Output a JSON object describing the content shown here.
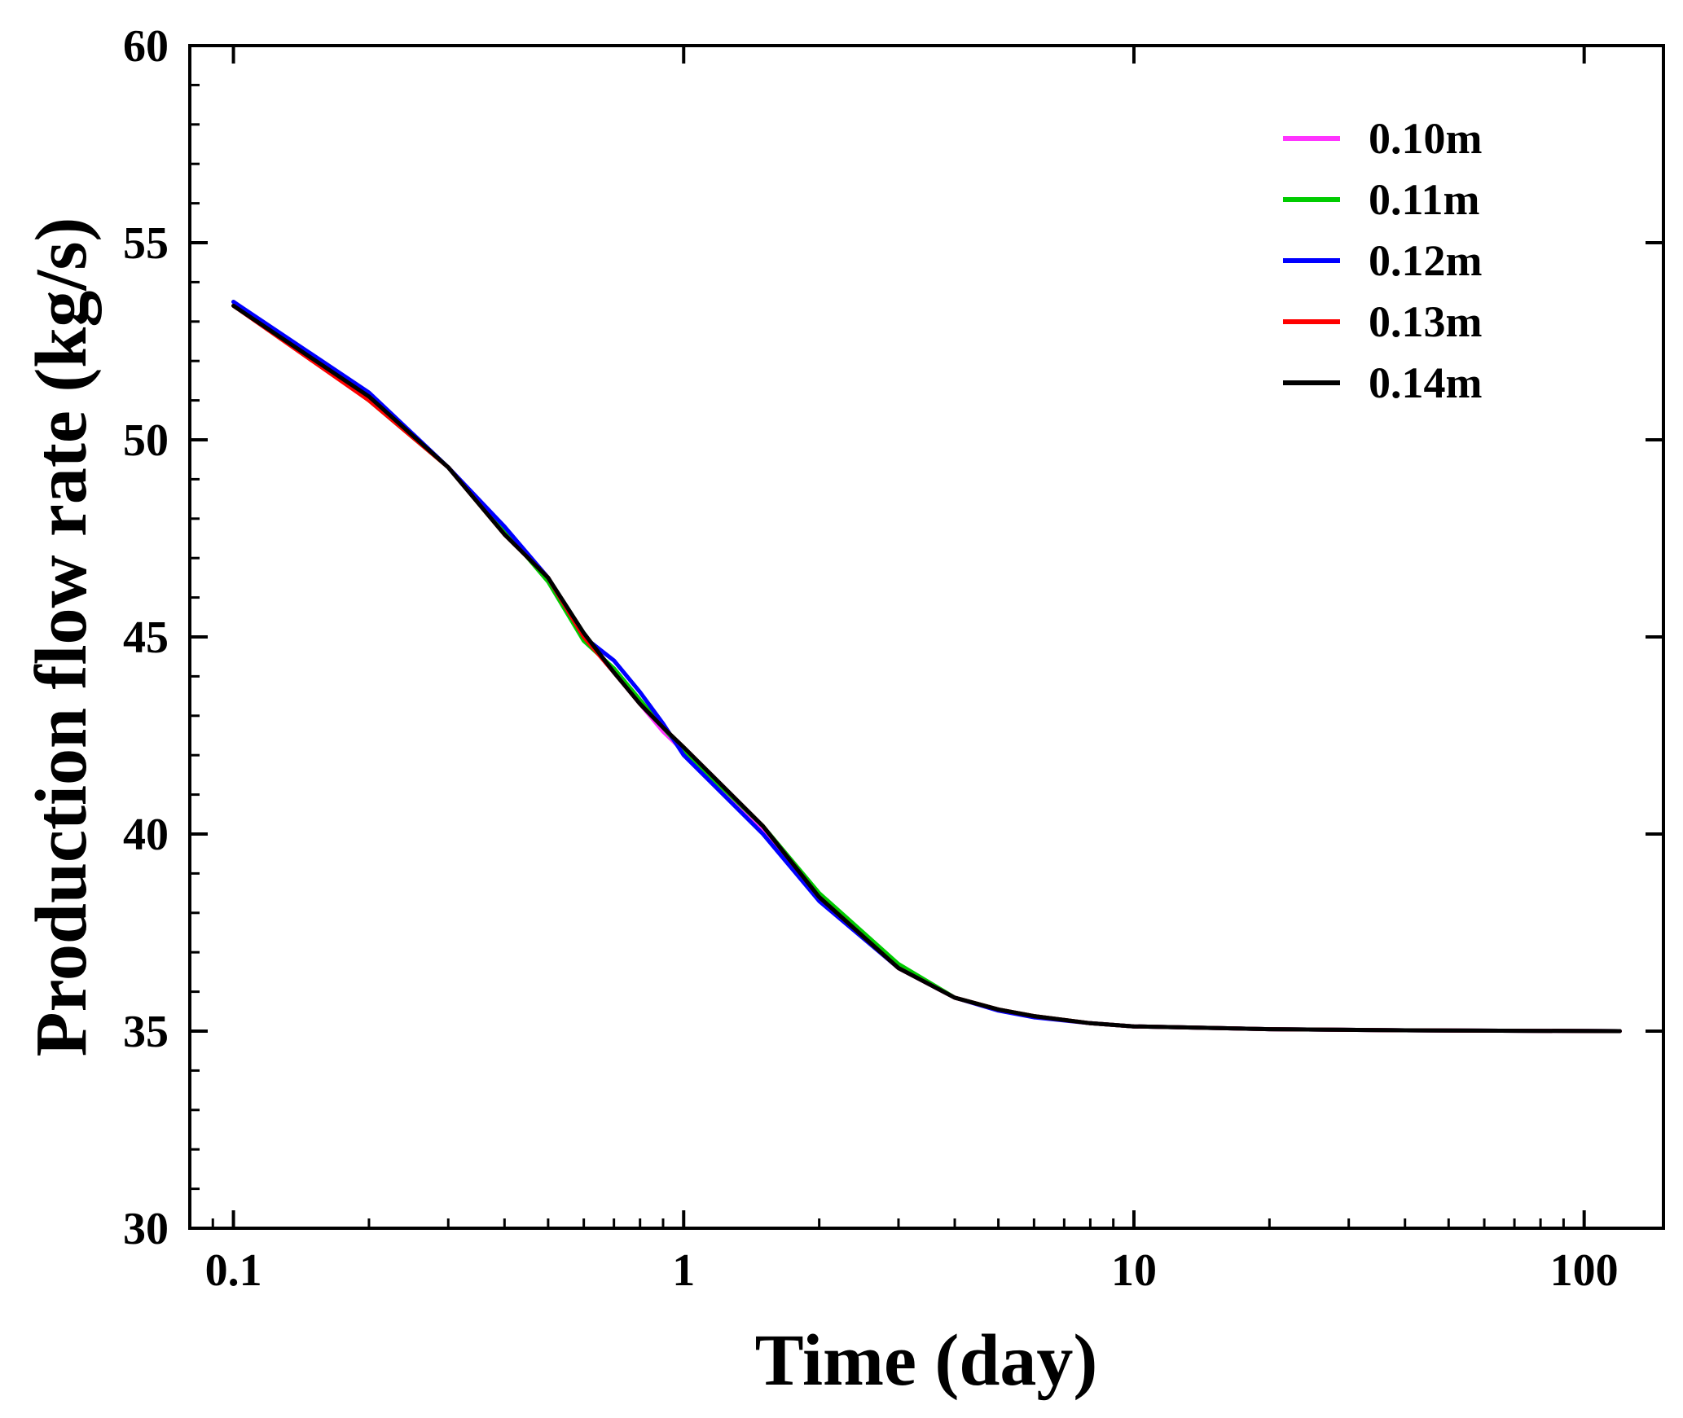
{
  "chart_data": {
    "type": "line",
    "title": "",
    "xlabel": "Time (day)",
    "ylabel": "Production flow rate (kg/s)",
    "xscale": "log",
    "xlim": [
      0.08,
      150
    ],
    "ylim": [
      30,
      60
    ],
    "xticks": [
      {
        "value": 0.1,
        "label": "0.1"
      },
      {
        "value": 1,
        "label": "1"
      },
      {
        "value": 10,
        "label": "10"
      },
      {
        "value": 100,
        "label": "100"
      }
    ],
    "yticks": [
      {
        "value": 30,
        "label": "30"
      },
      {
        "value": 35,
        "label": "35"
      },
      {
        "value": 40,
        "label": "40"
      },
      {
        "value": 45,
        "label": "45"
      },
      {
        "value": 50,
        "label": "50"
      },
      {
        "value": 55,
        "label": "55"
      },
      {
        "value": 60,
        "label": "60"
      }
    ],
    "grid": false,
    "legend_position": "top-right",
    "series": [
      {
        "name": "0.10m",
        "color": "#ff33ff",
        "x": [
          0.1,
          0.2,
          0.3,
          0.4,
          0.5,
          0.6,
          0.7,
          0.8,
          0.9,
          1,
          1.5,
          2,
          3,
          4,
          5,
          6,
          8,
          10,
          20,
          40,
          120
        ],
        "y": [
          53.5,
          51.1,
          49.3,
          47.7,
          46.5,
          45.0,
          44.1,
          43.3,
          42.6,
          42.1,
          40.1,
          38.4,
          36.6,
          35.85,
          35.55,
          35.38,
          35.2,
          35.12,
          35.05,
          35.02,
          35.0
        ]
      },
      {
        "name": "0.11m",
        "color": "#00cc00",
        "x": [
          0.1,
          0.2,
          0.3,
          0.4,
          0.5,
          0.6,
          0.7,
          0.8,
          0.9,
          1,
          1.5,
          2,
          3,
          4,
          5,
          6,
          8,
          10,
          20,
          40,
          120
        ],
        "y": [
          53.5,
          51.0,
          49.3,
          47.7,
          46.4,
          44.9,
          44.2,
          43.4,
          42.7,
          42.1,
          40.2,
          38.5,
          36.7,
          35.85,
          35.55,
          35.38,
          35.2,
          35.12,
          35.05,
          35.02,
          35.0
        ]
      },
      {
        "name": "0.12m",
        "color": "#0000ff",
        "x": [
          0.1,
          0.2,
          0.3,
          0.4,
          0.5,
          0.6,
          0.7,
          0.8,
          0.9,
          1,
          1.5,
          2,
          3,
          4,
          5,
          6,
          8,
          10,
          20,
          40,
          120
        ],
        "y": [
          53.5,
          51.2,
          49.3,
          47.8,
          46.5,
          45.0,
          44.4,
          43.6,
          42.8,
          42.0,
          40.0,
          38.3,
          36.6,
          35.85,
          35.52,
          35.35,
          35.2,
          35.12,
          35.05,
          35.02,
          35.0
        ]
      },
      {
        "name": "0.13m",
        "color": "#ff0000",
        "x": [
          0.1,
          0.2,
          0.3,
          0.4,
          0.5,
          0.6,
          0.7,
          0.8,
          0.9,
          1,
          1.5,
          2,
          3,
          4,
          5,
          6,
          8,
          10,
          20,
          40,
          120
        ],
        "y": [
          53.4,
          51.0,
          49.3,
          47.6,
          46.5,
          45.0,
          44.1,
          43.3,
          42.7,
          42.2,
          40.2,
          38.4,
          36.6,
          35.85,
          35.55,
          35.38,
          35.2,
          35.12,
          35.05,
          35.02,
          35.0
        ]
      },
      {
        "name": "0.14m",
        "color": "#000000",
        "x": [
          0.1,
          0.2,
          0.3,
          0.4,
          0.5,
          0.6,
          0.7,
          0.8,
          0.9,
          1,
          1.5,
          2,
          3,
          4,
          5,
          6,
          8,
          10,
          20,
          40,
          120
        ],
        "y": [
          53.4,
          51.1,
          49.3,
          47.6,
          46.5,
          45.1,
          44.1,
          43.3,
          42.7,
          42.2,
          40.2,
          38.4,
          36.6,
          35.85,
          35.55,
          35.38,
          35.2,
          35.12,
          35.05,
          35.02,
          35.0
        ]
      }
    ]
  }
}
